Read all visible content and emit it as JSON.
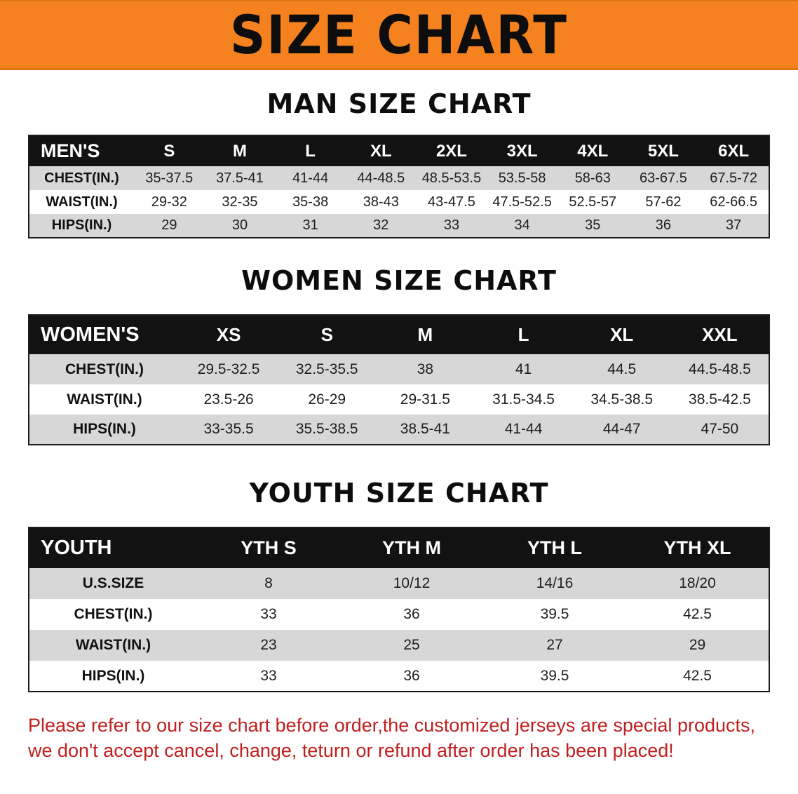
{
  "banner": {
    "title": "SIZE CHART",
    "background_color": "#f5821f",
    "text_color": "#0d0d0d"
  },
  "sections": [
    {
      "heading": "MAN SIZE CHART",
      "table": {
        "header": [
          "MEN'S",
          "S",
          "M",
          "L",
          "XL",
          "2XL",
          "3XL",
          "4XL",
          "5XL",
          "6XL"
        ],
        "rows": [
          [
            "CHEST(IN.)",
            "35-37.5",
            "37.5-41",
            "41-44",
            "44-48.5",
            "48.5-53.5",
            "53.5-58",
            "58-63",
            "63-67.5",
            "67.5-72"
          ],
          [
            "WAIST(IN.)",
            "29-32",
            "32-35",
            "35-38",
            "38-43",
            "43-47.5",
            "47.5-52.5",
            "52.5-57",
            "57-62",
            "62-66.5"
          ],
          [
            "HIPS(IN.)",
            "29",
            "30",
            "31",
            "32",
            "33",
            "34",
            "35",
            "36",
            "37"
          ]
        ]
      }
    },
    {
      "heading": "WOMEN SIZE CHART",
      "table": {
        "header": [
          "WOMEN'S",
          "XS",
          "S",
          "M",
          "L",
          "XL",
          "XXL"
        ],
        "rows": [
          [
            "CHEST(IN.)",
            "29.5-32.5",
            "32.5-35.5",
            "38",
            "41",
            "44.5",
            "44.5-48.5"
          ],
          [
            "WAIST(IN.)",
            "23.5-26",
            "26-29",
            "29-31.5",
            "31.5-34.5",
            "34.5-38.5",
            "38.5-42.5"
          ],
          [
            "HIPS(IN.)",
            "33-35.5",
            "35.5-38.5",
            "38.5-41",
            "41-44",
            "44-47",
            "47-50"
          ]
        ]
      }
    },
    {
      "heading": "YOUTH SIZE CHART",
      "table": {
        "header": [
          "YOUTH",
          "YTH S",
          "YTH M",
          "YTH L",
          "YTH XL"
        ],
        "rows": [
          [
            "U.S.SIZE",
            "8",
            "10/12",
            "14/16",
            "18/20"
          ],
          [
            "CHEST(IN.)",
            "33",
            "36",
            "39.5",
            "42.5"
          ],
          [
            "WAIST(IN.)",
            "23",
            "25",
            "27",
            "29"
          ],
          [
            "HIPS(IN.)",
            "33",
            "36",
            "39.5",
            "42.5"
          ]
        ]
      }
    }
  ],
  "disclaimer": {
    "color": "#c01f1f",
    "lines": [
      "Please refer to our size chart before order,the customized jerseys are special products,",
      "we don't accept cancel, change, teturn or refund after order has been placed!"
    ]
  }
}
